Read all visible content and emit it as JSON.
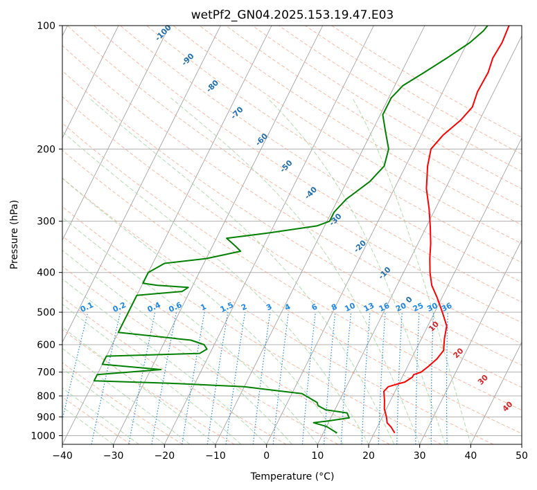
{
  "chart_data": {
    "type": "line",
    "title": "wetPf2_GN04.2025.153.19.47.E03",
    "xlabel": "Temperature (°C)",
    "ylabel": "Pressure (hPa)",
    "xlim": [
      -40,
      50
    ],
    "ylim": [
      1050,
      100
    ],
    "y_scale": "log",
    "grid": true,
    "x_ticks": [
      -40,
      -30,
      -20,
      -10,
      0,
      10,
      20,
      30,
      40,
      50
    ],
    "x_tick_labels": [
      "−40",
      "−30",
      "−20",
      "−10",
      "0",
      "10",
      "20",
      "30",
      "40",
      "50"
    ],
    "y_ticks": [
      100,
      200,
      300,
      400,
      500,
      600,
      700,
      800,
      900,
      1000
    ],
    "y_tick_labels": [
      "100",
      "200",
      "300",
      "400",
      "500",
      "600",
      "700",
      "800",
      "900",
      "1000"
    ],
    "series": [
      {
        "color": "#ff0000",
        "points": [
          [
            24,
            985
          ],
          [
            23.4,
            970
          ],
          [
            22.8,
            955
          ],
          [
            21.5,
            930
          ],
          [
            20.8,
            900
          ],
          [
            19.6,
            860
          ],
          [
            18.8,
            820
          ],
          [
            17.8,
            780
          ],
          [
            18.2,
            760
          ],
          [
            19.5,
            750
          ],
          [
            21,
            740
          ],
          [
            22,
            720
          ],
          [
            22,
            710
          ],
          [
            23.2,
            700
          ],
          [
            24,
            680
          ],
          [
            25,
            650
          ],
          [
            25.5,
            620
          ],
          [
            24.5,
            580
          ],
          [
            23.7,
            540
          ],
          [
            21.5,
            500
          ],
          [
            19,
            460
          ],
          [
            16.8,
            430
          ],
          [
            15.2,
            400
          ],
          [
            13.8,
            370
          ],
          [
            12.5,
            340
          ],
          [
            10.8,
            310
          ],
          [
            8.8,
            280
          ],
          [
            6.3,
            250
          ],
          [
            4.3,
            220
          ],
          [
            3.3,
            200
          ],
          [
            4.3,
            185
          ],
          [
            6.3,
            170
          ],
          [
            7.3,
            158
          ],
          [
            6.8,
            145
          ],
          [
            7.0,
            130
          ],
          [
            6.5,
            120
          ],
          [
            6.8,
            110
          ],
          [
            6.5,
            100
          ]
        ]
      },
      {
        "color": "#008000",
        "points": [
          [
            12.7,
            985
          ],
          [
            10,
            950
          ],
          [
            7.1,
            930
          ],
          [
            10,
            920
          ],
          [
            13.6,
            905
          ],
          [
            12.7,
            880
          ],
          [
            8.2,
            865
          ],
          [
            6.3,
            845
          ],
          [
            5.8,
            830
          ],
          [
            2,
            790
          ],
          [
            -10,
            760
          ],
          [
            -25,
            745
          ],
          [
            -40,
            735
          ],
          [
            -40,
            730
          ],
          [
            -40,
            710
          ],
          [
            -28,
            690
          ],
          [
            -40,
            670
          ],
          [
            -40,
            660
          ],
          [
            -40,
            640
          ],
          [
            -22,
            630
          ],
          [
            -21,
            615
          ],
          [
            -22,
            600
          ],
          [
            -25,
            585
          ],
          [
            -40,
            560
          ],
          [
            -40,
            455
          ],
          [
            -31.5,
            445
          ],
          [
            -30.7,
            435
          ],
          [
            -37,
            430
          ],
          [
            -40,
            425
          ],
          [
            -40,
            400
          ],
          [
            -37.7,
            380
          ],
          [
            -30,
            370
          ],
          [
            -24,
            355
          ],
          [
            -25.5,
            345
          ],
          [
            -28,
            330
          ],
          [
            -20,
            320
          ],
          [
            -11.5,
            308
          ],
          [
            -9.5,
            300
          ],
          [
            -9.5,
            285
          ],
          [
            -8.4,
            265
          ],
          [
            -5.5,
            240
          ],
          [
            -4.2,
            220
          ],
          [
            -5,
            200
          ],
          [
            -7.5,
            180
          ],
          [
            -9.5,
            165
          ],
          [
            -9.5,
            150
          ],
          [
            -8.4,
            140
          ],
          [
            -5.5,
            130
          ],
          [
            -2.5,
            120
          ],
          [
            0.5,
            110
          ],
          [
            2,
            103
          ],
          [
            2.3,
            100
          ]
        ]
      }
    ],
    "dry_adiabat_labels": [
      "-100",
      "-90",
      "-80",
      "-70",
      "-60",
      "-50",
      "-40",
      "-30",
      "-20",
      "-10",
      "0",
      "10",
      "20",
      "30",
      "40"
    ],
    "mixing_ratio_labels": [
      "0.1",
      "0.2",
      "0.4",
      "0.6",
      "1",
      "1.5",
      "2",
      "3",
      "4",
      "6",
      "8",
      "10",
      "13",
      "16",
      "20",
      "25",
      "30",
      "36"
    ],
    "colors": {
      "temperature": "#ff0000",
      "dewpoint": "#008000",
      "dry_adiabat_label_cold": "#1f6fb0",
      "dry_adiabat_label_warm": "#d62728",
      "mixing_ratio": "#1e88e5",
      "dry_adiabat_line": "#f4a284",
      "moist_adiabat_line": "#9ed39b",
      "isotherm_line": "#999999",
      "reference_curve": "#d9b38c"
    }
  }
}
